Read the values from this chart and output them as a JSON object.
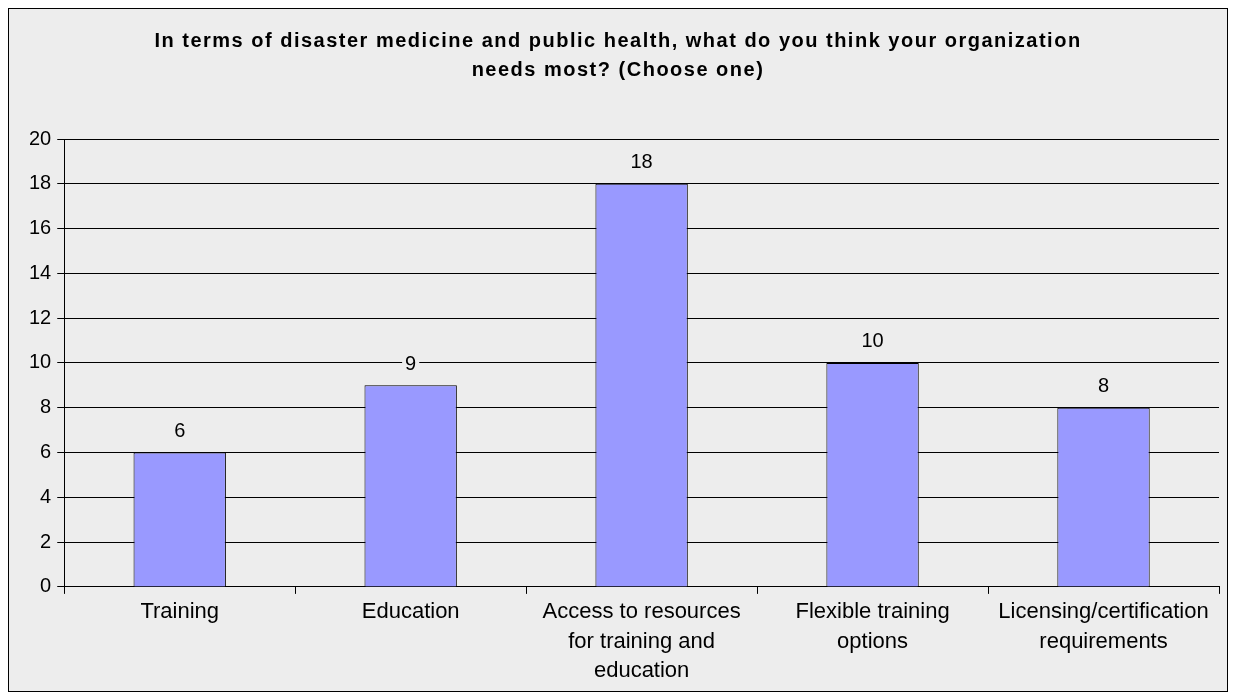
{
  "chart_data": {
    "type": "bar",
    "title": "In terms of disaster medicine and public health, what do you think your organization needs most? (Choose one)",
    "categories": [
      "Training",
      "Education",
      "Access to resources for training and education",
      "Flexible training options",
      "Licensing/certification requirements"
    ],
    "values": [
      6,
      9,
      18,
      10,
      8
    ],
    "color": "#9999ff",
    "ylim": [
      0,
      20
    ],
    "yticks": [
      0,
      2,
      4,
      6,
      8,
      10,
      12,
      14,
      16,
      18,
      20
    ],
    "grid": "y",
    "data_labels": true
  }
}
